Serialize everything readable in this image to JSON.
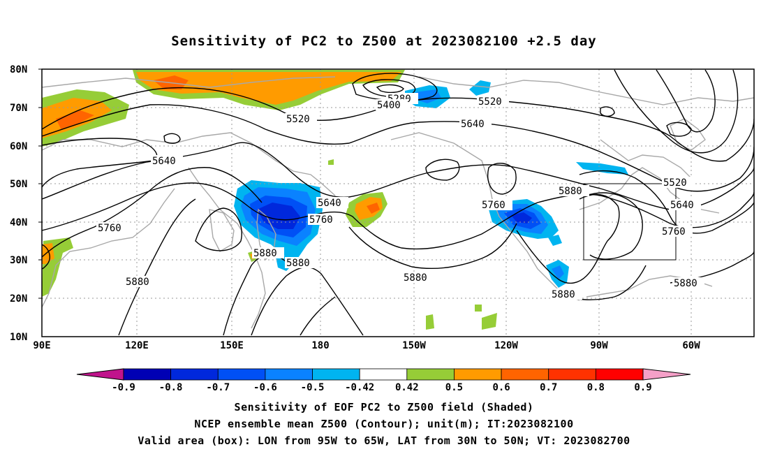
{
  "title": "Sensitivity of PC2 to Z500 at 2023082100 +2.5 day",
  "lat_ticks": [
    "80N",
    "70N",
    "60N",
    "50N",
    "40N",
    "30N",
    "20N",
    "10N"
  ],
  "lon_ticks": [
    "90E",
    "120E",
    "150E",
    "180",
    "150W",
    "120W",
    "90W",
    "60W"
  ],
  "contour_labels": [
    {
      "text": "5280"
    },
    {
      "text": "5400"
    },
    {
      "text": "5520"
    },
    {
      "text": "5520"
    },
    {
      "text": "5640"
    },
    {
      "text": "5640"
    },
    {
      "text": "5520"
    },
    {
      "text": "5640"
    },
    {
      "text": "5760"
    },
    {
      "text": "5640"
    },
    {
      "text": "5760"
    },
    {
      "text": "5760"
    },
    {
      "text": "5880"
    },
    {
      "text": "5760"
    },
    {
      "text": "5880"
    },
    {
      "text": "5880"
    },
    {
      "text": "5880"
    },
    {
      "text": "5880"
    },
    {
      "text": "5880"
    }
  ],
  "colorbar": {
    "labels": [
      "-0.9",
      "-0.8",
      "-0.7",
      "-0.6",
      "-0.5",
      "-0.42",
      "0.42",
      "0.5",
      "0.6",
      "0.7",
      "0.8",
      "0.9"
    ],
    "colors": {
      "below": "#c0148c",
      "bins": [
        "#0000b4",
        "#0028dc",
        "#0050f5",
        "#0a82ff",
        "#00b4f0",
        "#ffffff",
        "#96cd37",
        "#ff9b00",
        "#ff6400",
        "#ff3200",
        "#ff0000"
      ],
      "above": "#f5a0c8"
    }
  },
  "captions": {
    "line1": "Sensitivity of EOF PC2 to Z500 field (Shaded)",
    "line2": "NCEP ensemble mean Z500 (Contour); unit(m); IT:2023082100",
    "line3": "Valid area (box): LON from 95W to 65W, LAT from 30N to 50N; VT: 2023082700"
  }
}
